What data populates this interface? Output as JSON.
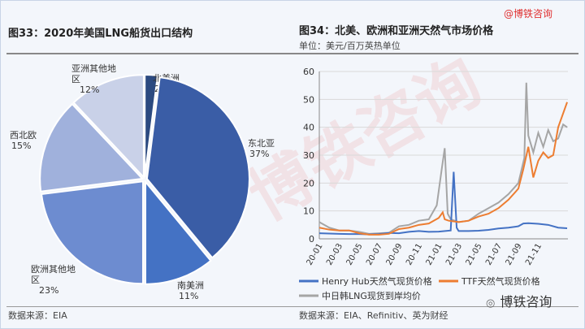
{
  "brand": "@博铁咨询",
  "watermark": "博铁咨询",
  "left": {
    "title": "图33：2020年美国LNG船货出口结构",
    "source": "数据来源：EIA"
  },
  "right": {
    "title": "图34：北美、欧洲和亚洲天然气市场价格",
    "unit": "单位：美元/百万英热单位",
    "source": "数据来源：EIA、Refinitiv、英为财经",
    "footer_logo": "博铁咨询"
  },
  "chart_data": [
    {
      "type": "pie",
      "title": "2020年美国LNG船货出口结构",
      "slices": [
        {
          "label": "北美洲",
          "value": 2,
          "pct": "2%",
          "color": "#2c4a80"
        },
        {
          "label": "东北亚",
          "value": 37,
          "pct": "37%",
          "color": "#3a5da6"
        },
        {
          "label": "南美洲",
          "value": 11,
          "pct": "11%",
          "color": "#4472c4"
        },
        {
          "label": "欧洲其他地区",
          "value": 23,
          "pct": "23%",
          "color": "#6d8cd0"
        },
        {
          "label": "西北欧",
          "value": 15,
          "pct": "15%",
          "color": "#a0b1dc"
        },
        {
          "label": "亚洲其他地区",
          "value": 12,
          "pct": "12%",
          "color": "#c9d1e8"
        }
      ]
    },
    {
      "type": "line",
      "title": "北美、欧洲和亚洲天然气市场价格",
      "ylabel": "美元/百万英热单位",
      "ylim": [
        0,
        60
      ],
      "yticks": [
        0,
        10,
        20,
        30,
        40,
        50,
        60
      ],
      "xticks": [
        "20-01",
        "20-03",
        "20-05",
        "20-07",
        "20-09",
        "20-11",
        "21-01",
        "21-03",
        "21-05",
        "21-07",
        "21-09",
        "21-11"
      ],
      "x_unit": "months since 2020-01",
      "series": [
        {
          "name": "Henry Hub天然气现货价格",
          "color": "#4472c4",
          "x": [
            0,
            1,
            2,
            3,
            4,
            5,
            6,
            7,
            8,
            9,
            10,
            11,
            12,
            13.2,
            13.5,
            13.8,
            14,
            15,
            16,
            17,
            18,
            19,
            20,
            20.5,
            21,
            22,
            23,
            24,
            24.9
          ],
          "y": [
            2.0,
            1.9,
            1.8,
            1.7,
            1.7,
            1.6,
            1.7,
            2.1,
            2.0,
            2.5,
            2.8,
            2.5,
            2.6,
            3,
            24,
            4,
            2.8,
            2.8,
            2.9,
            3.2,
            3.7,
            4.0,
            4.5,
            5.5,
            5.6,
            5.4,
            5.0,
            4.0,
            3.8
          ]
        },
        {
          "name": "TTF天然气现货价格",
          "color": "#ed7d31",
          "x": [
            0,
            1,
            2,
            3,
            4,
            5,
            6,
            7,
            8,
            9,
            10,
            11,
            12,
            12.4,
            12.6,
            13,
            14,
            15,
            16,
            17,
            18,
            19,
            20,
            20.5,
            21,
            21.5,
            22,
            22.5,
            23,
            23.5,
            24,
            24.9
          ],
          "y": [
            4,
            3.3,
            3,
            3,
            2,
            1.5,
            1.5,
            1.8,
            3.5,
            4,
            5,
            5.5,
            7.5,
            9.5,
            7,
            6.5,
            6,
            6.5,
            8,
            9,
            11,
            14,
            18,
            25,
            33,
            22,
            28,
            31,
            29,
            30,
            40,
            49
          ]
        },
        {
          "name": "中日韩LNG现货到岸均价",
          "color": "#a5a5a5",
          "x": [
            0,
            1,
            2,
            3,
            4,
            5,
            6,
            7,
            8,
            9,
            10,
            11,
            11.8,
            12.3,
            12.6,
            12.9,
            13.2,
            14,
            15,
            16,
            17,
            18,
            19,
            20,
            20.6,
            20.8,
            21,
            21.5,
            22,
            22.5,
            23,
            23.5,
            24,
            24.5,
            24.9
          ],
          "y": [
            6,
            4,
            3,
            3,
            2.5,
            1.8,
            2,
            2.2,
            4.5,
            5,
            6.5,
            7,
            12,
            25,
            32.5,
            9,
            7,
            6,
            6.5,
            9,
            11,
            13,
            16,
            20,
            29,
            56,
            37,
            31,
            38,
            33,
            39,
            35,
            36,
            41,
            40
          ]
        }
      ]
    }
  ]
}
